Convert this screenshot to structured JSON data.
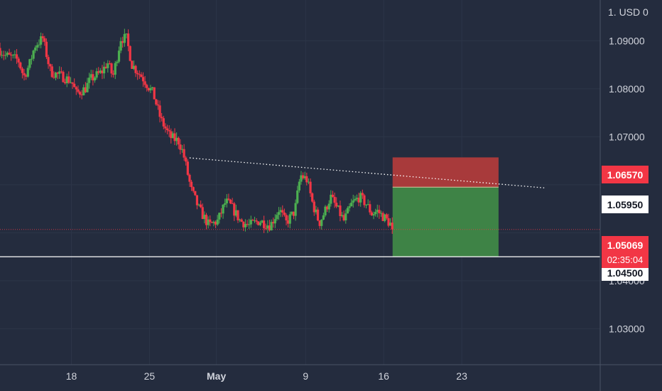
{
  "header": {
    "currency_label": "1. USD",
    "menu_glyph": "0"
  },
  "colors": {
    "background": "#242c3e",
    "grid": "#2c3548",
    "up": "#4caf50",
    "down": "#f23645",
    "axis_text": "#d1d4dc",
    "stop_zone": "#a83a3b",
    "target_zone": "#3e8346",
    "price_tag": "#f23645"
  },
  "tags": {
    "stop_price": "1.06570",
    "entry_price": "1.05950",
    "current_price": "1.05069",
    "countdown": "02:35:04",
    "support_price": "1.04500"
  },
  "chart_data": {
    "type": "candlestick",
    "title": "",
    "xlabel": "",
    "ylabel": "",
    "currency": "USD",
    "ylim": [
      1.0225,
      1.0985
    ],
    "y_ticks": [
      "1.09000",
      "1.08000",
      "1.07000",
      "1.04000",
      "1.03000"
    ],
    "x_ticks": [
      {
        "label": "18",
        "day": 18
      },
      {
        "label": "25",
        "day": 25
      },
      {
        "label": "May",
        "day": 31
      },
      {
        "label": "9",
        "day": 39
      },
      {
        "label": "16",
        "day": 46
      },
      {
        "label": "23",
        "day": 53
      }
    ],
    "x_domain": [
      11.6,
      60.0
    ],
    "candle_anchors": [
      [
        11.6,
        1.0885
      ],
      [
        12.2,
        1.087
      ],
      [
        13.4,
        1.086
      ],
      [
        13.9,
        1.0825
      ],
      [
        14.4,
        1.085
      ],
      [
        14.9,
        1.089
      ],
      [
        15.6,
        1.0905
      ],
      [
        16.3,
        1.0835
      ],
      [
        17.4,
        1.0825
      ],
      [
        18.2,
        1.0815
      ],
      [
        18.6,
        1.079
      ],
      [
        19.4,
        1.08
      ],
      [
        19.9,
        1.082
      ],
      [
        20.9,
        1.0835
      ],
      [
        21.4,
        1.0855
      ],
      [
        21.9,
        1.0825
      ],
      [
        22.6,
        1.0905
      ],
      [
        23.1,
        1.0905
      ],
      [
        23.6,
        1.085
      ],
      [
        24.5,
        1.0825
      ],
      [
        25.5,
        1.079
      ],
      [
        26.2,
        1.0735
      ],
      [
        27.0,
        1.07
      ],
      [
        27.8,
        1.069
      ],
      [
        28.2,
        1.0665
      ],
      [
        28.9,
        1.059
      ],
      [
        29.6,
        1.055
      ],
      [
        30.5,
        1.0515
      ],
      [
        31.3,
        1.0525
      ],
      [
        32.0,
        1.0565
      ],
      [
        32.5,
        1.0555
      ],
      [
        33.3,
        1.0525
      ],
      [
        34.1,
        1.0515
      ],
      [
        35.0,
        1.0525
      ],
      [
        36.0,
        1.0515
      ],
      [
        36.8,
        1.055
      ],
      [
        37.4,
        1.052
      ],
      [
        38.2,
        1.0545
      ],
      [
        38.7,
        1.062
      ],
      [
        39.3,
        1.061
      ],
      [
        39.8,
        1.056
      ],
      [
        40.4,
        1.052
      ],
      [
        40.9,
        1.0545
      ],
      [
        41.4,
        1.0575
      ],
      [
        42.0,
        1.055
      ],
      [
        42.6,
        1.0525
      ],
      [
        43.3,
        1.056
      ],
      [
        44.0,
        1.0575
      ],
      [
        44.6,
        1.056
      ],
      [
        45.1,
        1.054
      ],
      [
        45.6,
        1.0545
      ],
      [
        46.3,
        1.053
      ],
      [
        46.9,
        1.0515
      ]
    ],
    "last_close": 1.05069,
    "trendline": {
      "start": {
        "day": 28.6,
        "price": 1.0656
      },
      "end": {
        "day": 60.4,
        "price": 1.05935
      },
      "style": "dotted"
    },
    "support_line": {
      "price": 1.045
    },
    "current_price_line": {
      "price": 1.05069
    },
    "position": {
      "entry": 1.0595,
      "stop": 1.0657,
      "target": 1.045,
      "start_day": 46.8,
      "end_day": 56.3
    }
  }
}
